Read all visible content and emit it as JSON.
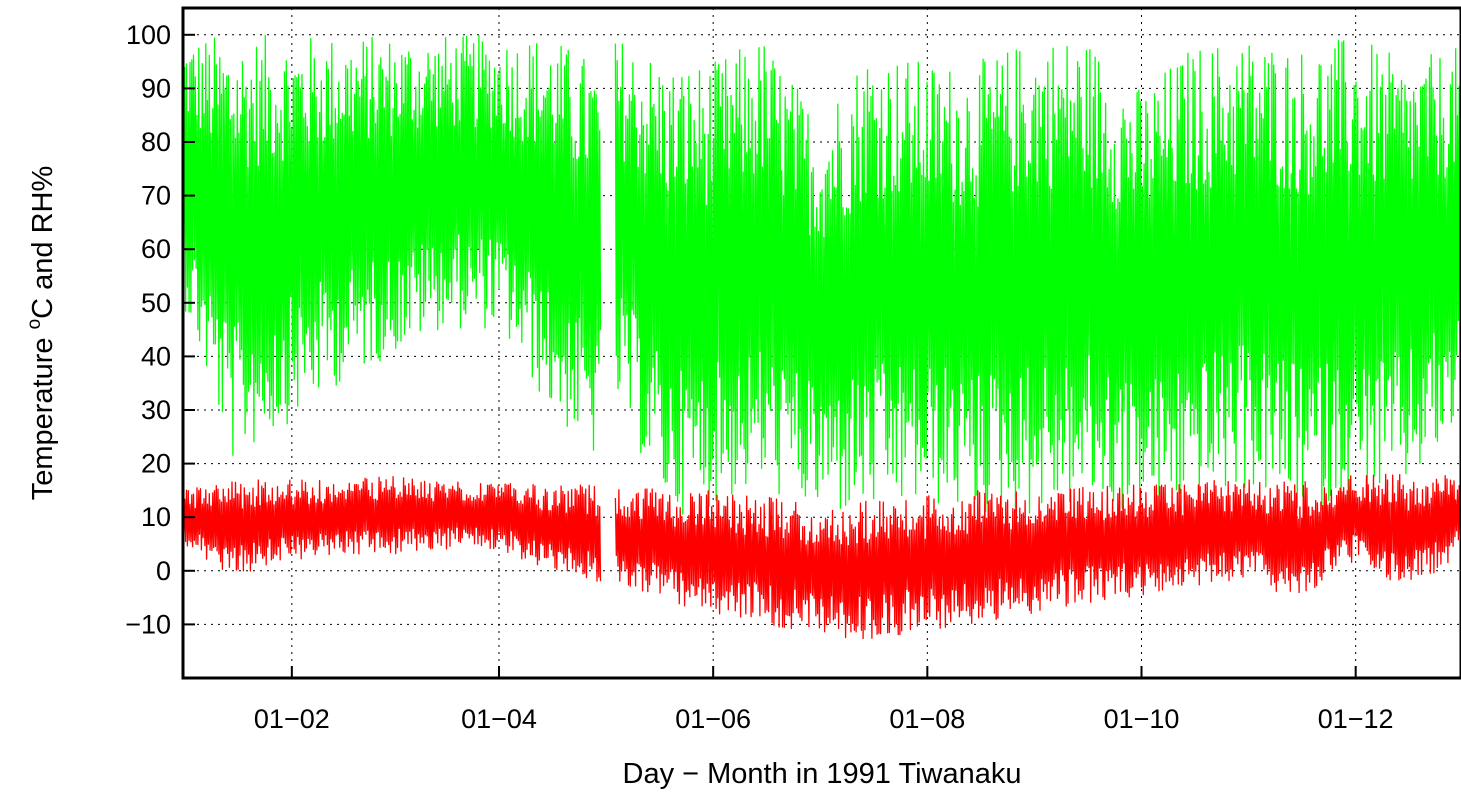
{
  "chart_data": {
    "type": "line",
    "title": "",
    "xlabel": "Day − Month in 1991 Tiwanaku",
    "ylabel": {
      "prefix": "Temperature ",
      "sup": "o",
      "suffix": "C and RH%"
    },
    "xlim": [
      "1991-01-01",
      "1991-12-31"
    ],
    "ylim": [
      -20,
      105
    ],
    "x_ticks": [
      {
        "date": "1991-02-01",
        "label": "01−02"
      },
      {
        "date": "1991-04-01",
        "label": "01−04"
      },
      {
        "date": "1991-06-01",
        "label": "01−06"
      },
      {
        "date": "1991-08-01",
        "label": "01−08"
      },
      {
        "date": "1991-10-01",
        "label": "01−10"
      },
      {
        "date": "1991-12-01",
        "label": "01−12"
      }
    ],
    "y_ticks": [
      {
        "value": -10,
        "label": "−10"
      },
      {
        "value": 0,
        "label": "0"
      },
      {
        "value": 10,
        "label": "10"
      },
      {
        "value": 20,
        "label": "20"
      },
      {
        "value": 30,
        "label": "30"
      },
      {
        "value": 40,
        "label": "40"
      },
      {
        "value": 50,
        "label": "50"
      },
      {
        "value": 60,
        "label": "60"
      },
      {
        "value": 70,
        "label": "70"
      },
      {
        "value": 80,
        "label": "80"
      },
      {
        "value": 90,
        "label": "90"
      },
      {
        "value": 100,
        "label": "100"
      }
    ],
    "grid": true,
    "legend": false,
    "gap": [
      "1991-04-30",
      "1991-05-04"
    ],
    "series": [
      {
        "color": "#00ff00",
        "x": [
          "1991-01-01",
          "1991-01-15",
          "1991-02-01",
          "1991-02-15",
          "1991-03-01",
          "1991-03-15",
          "1991-04-01",
          "1991-04-15",
          "1991-04-29",
          "1991-05-05",
          "1991-05-20",
          "1991-06-01",
          "1991-06-15",
          "1991-07-01",
          "1991-07-15",
          "1991-08-01",
          "1991-08-15",
          "1991-09-01",
          "1991-09-15",
          "1991-10-01",
          "1991-10-15",
          "1991-11-01",
          "1991-11-15",
          "1991-12-01",
          "1991-12-15",
          "1991-12-31"
        ],
        "max": [
          100,
          100,
          100,
          100,
          100,
          100,
          100,
          100,
          95,
          100,
          95,
          95,
          100,
          85,
          98,
          95,
          95,
          100,
          100,
          90,
          98,
          100,
          98,
          100,
          95,
          98
        ],
        "min": [
          50,
          20,
          28,
          35,
          40,
          45,
          45,
          30,
          20,
          30,
          10,
          12,
          15,
          10,
          10,
          12,
          10,
          10,
          12,
          10,
          12,
          15,
          10,
          12,
          15,
          25
        ]
      },
      {
        "color": "#ff0000",
        "x": [
          "1991-01-01",
          "1991-01-15",
          "1991-02-01",
          "1991-02-15",
          "1991-03-01",
          "1991-03-15",
          "1991-04-01",
          "1991-04-15",
          "1991-04-29",
          "1991-05-05",
          "1991-05-20",
          "1991-06-01",
          "1991-06-15",
          "1991-07-01",
          "1991-07-15",
          "1991-08-01",
          "1991-08-15",
          "1991-09-01",
          "1991-09-15",
          "1991-10-01",
          "1991-10-15",
          "1991-11-01",
          "1991-11-15",
          "1991-12-01",
          "1991-12-15",
          "1991-12-31"
        ],
        "max": [
          15,
          17,
          17,
          17,
          18,
          17,
          17,
          16,
          16,
          16,
          15,
          15,
          14,
          12,
          13,
          14,
          15,
          15,
          16,
          16,
          17,
          17,
          17,
          18,
          18,
          18
        ],
        "min": [
          5,
          -1,
          2,
          3,
          3,
          4,
          4,
          0,
          -2,
          -2,
          -6,
          -8,
          -10,
          -12,
          -13,
          -11,
          -10,
          -8,
          -6,
          -5,
          -3,
          -2,
          -6,
          2,
          -4,
          3
        ]
      }
    ]
  }
}
